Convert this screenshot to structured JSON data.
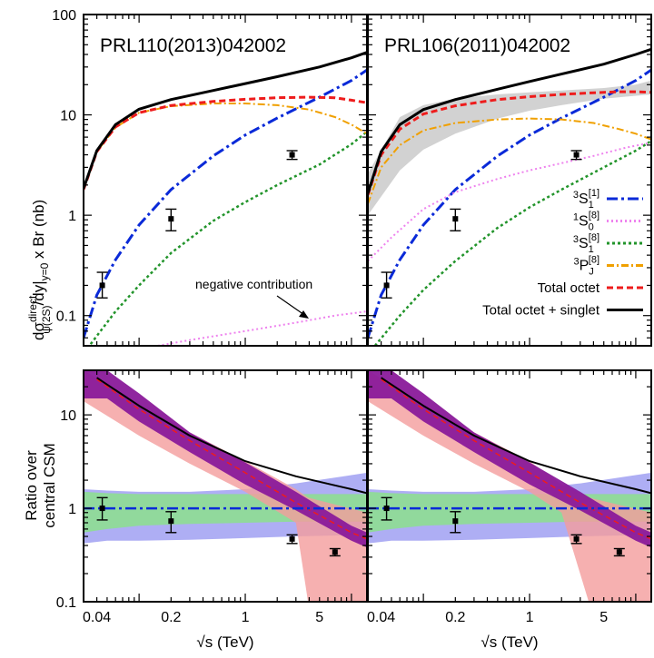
{
  "figure": {
    "xlabel": "√s (TeV)",
    "top_ylabel_main": "dσ",
    "top_ylabel_sup": "direct",
    "top_ylabel_sub": "ψ(2S)",
    "top_ylabel_rest": "/dy|",
    "top_ylabel_sub2": "y=0",
    "top_ylabel_tail": " x Br (nb)",
    "bottom_ylabel_line1": "Ratio over",
    "bottom_ylabel_line2": "central CSM",
    "panel_left_title": "PRL110(2013)042002",
    "panel_right_title": "PRL106(2011)042002",
    "annotation": "negative contribution"
  },
  "legend": [
    {
      "key": "3S1_1",
      "pre": "3",
      "main": "S",
      "sub": "1",
      "sup": "[1]",
      "color": "#0a2ad8",
      "dash": "12,4,3,4"
    },
    {
      "key": "1S0_8",
      "pre": "1",
      "main": "S",
      "sub": "0",
      "sup": "[8]",
      "color": "#ee82ee",
      "dash": "2,3"
    },
    {
      "key": "3S1_8",
      "pre": "3",
      "main": "S",
      "sub": "1",
      "sup": "[8]",
      "color": "#22942b",
      "dash": "3,3"
    },
    {
      "key": "3PJ_8",
      "pre": "3",
      "main": "P",
      "sub": "J",
      "sup": "[8]",
      "color": "#f0a000",
      "dash": "8,3,2,3"
    },
    {
      "key": "octet",
      "text": "Total octet",
      "color": "#ee1c1c",
      "dash": "7,4"
    },
    {
      "key": "total",
      "text": "Total octet + singlet",
      "color": "#000000",
      "dash": ""
    }
  ],
  "chart_data": [
    {
      "type": "line",
      "panel": "top-left",
      "title": "PRL110(2013)042002",
      "xscale": "log",
      "yscale": "log",
      "xlim": [
        0.03,
        14
      ],
      "ylim": [
        0.05,
        100
      ],
      "xticks": [
        "0.04",
        "0.2",
        "1",
        "5"
      ],
      "yticks": [
        "0.1",
        "1",
        "10",
        "100"
      ],
      "ylabel": "dσ^direct_ψ(2S)/dy|y=0 x Br (nb)",
      "series": [
        {
          "name": "3S1[1]",
          "x": [
            0.03,
            0.04,
            0.06,
            0.1,
            0.2,
            0.5,
            1,
            2,
            5,
            10,
            14
          ],
          "y": [
            0.06,
            0.16,
            0.36,
            0.8,
            1.8,
            3.9,
            6.3,
            9.3,
            15,
            22,
            28
          ]
        },
        {
          "name": "3S1[8]",
          "x": [
            0.035,
            0.06,
            0.1,
            0.2,
            0.5,
            1,
            2,
            5,
            10,
            14
          ],
          "y": [
            0.052,
            0.11,
            0.2,
            0.42,
            0.88,
            1.35,
            2.0,
            3.2,
            5.1,
            6.8
          ]
        },
        {
          "name": "3PJ[8]",
          "x": [
            0.03,
            0.04,
            0.06,
            0.1,
            0.2,
            0.5,
            1,
            2,
            4,
            7,
            10,
            14
          ],
          "y": [
            1.8,
            4.3,
            7.5,
            10.5,
            12.2,
            13.0,
            13.0,
            12.5,
            11.3,
            9.5,
            8.0,
            6.5
          ]
        },
        {
          "name": "1S0[8]",
          "x": [
            0.15,
            0.3,
            1,
            3,
            7,
            14
          ],
          "y": [
            0.05,
            0.057,
            0.07,
            0.085,
            0.1,
            0.11
          ]
        },
        {
          "name": "Total octet",
          "x": [
            0.03,
            0.04,
            0.06,
            0.1,
            0.2,
            0.5,
            1,
            2,
            4,
            7,
            10,
            14
          ],
          "y": [
            1.8,
            4.3,
            7.6,
            10.5,
            12.4,
            13.6,
            14.3,
            14.8,
            15.0,
            14.8,
            14.0,
            13.2
          ]
        },
        {
          "name": "Total octet + singlet",
          "x": [
            0.03,
            0.04,
            0.06,
            0.1,
            0.2,
            0.5,
            1,
            2,
            5,
            10,
            14
          ],
          "y": [
            1.85,
            4.4,
            8.0,
            11.4,
            14.2,
            17.5,
            20.5,
            24,
            30,
            37,
            42
          ]
        }
      ],
      "data_points": [
        {
          "x": 0.045,
          "y": 0.2,
          "ylo": 0.15,
          "yhi": 0.27
        },
        {
          "x": 0.2,
          "y": 0.92,
          "ylo": 0.7,
          "yhi": 1.15
        },
        {
          "x": 2.76,
          "y": 4.0,
          "ylo": 3.6,
          "yhi": 4.4
        }
      ]
    },
    {
      "type": "line",
      "panel": "top-right",
      "title": "PRL106(2011)042002",
      "xscale": "log",
      "yscale": "log",
      "xlim": [
        0.03,
        14
      ],
      "ylim": [
        0.05,
        100
      ],
      "xticks": [
        "0.04",
        "0.2",
        "1",
        "5"
      ],
      "series": [
        {
          "name": "3S1[1]",
          "x": [
            0.03,
            0.04,
            0.06,
            0.1,
            0.2,
            0.5,
            1,
            2,
            5,
            10,
            14
          ],
          "y": [
            0.06,
            0.16,
            0.36,
            0.8,
            1.8,
            3.9,
            6.3,
            9.3,
            15,
            22,
            28
          ]
        },
        {
          "name": "3S1[8]",
          "x": [
            0.035,
            0.06,
            0.1,
            0.2,
            0.5,
            1,
            2,
            5,
            10,
            14
          ],
          "y": [
            0.05,
            0.1,
            0.18,
            0.35,
            0.75,
            1.2,
            1.8,
            3.0,
            4.4,
            5.5
          ]
        },
        {
          "name": "3PJ[8]",
          "x": [
            0.03,
            0.04,
            0.06,
            0.1,
            0.2,
            0.5,
            1,
            2,
            4,
            7,
            10,
            14
          ],
          "y": [
            1.3,
            3.0,
            5.0,
            7.0,
            8.3,
            9.0,
            9.2,
            9.0,
            8.3,
            7.2,
            6.5,
            5.7
          ]
        },
        {
          "name": "1S0[8]",
          "x": [
            0.03,
            0.05,
            0.1,
            0.2,
            0.5,
            1,
            2,
            4,
            8,
            14
          ],
          "y": [
            0.35,
            0.6,
            1.15,
            1.7,
            2.3,
            2.8,
            3.3,
            3.9,
            4.7,
            5.3
          ]
        },
        {
          "name": "Total octet",
          "x": [
            0.03,
            0.04,
            0.06,
            0.1,
            0.2,
            0.5,
            1,
            2,
            4,
            7,
            10,
            14
          ],
          "y": [
            1.6,
            4.0,
            7.2,
            10.2,
            12.3,
            14.2,
            15.2,
            16.0,
            16.6,
            17.0,
            17.0,
            16.8
          ]
        },
        {
          "name": "Total octet + singlet",
          "x": [
            0.03,
            0.04,
            0.06,
            0.1,
            0.2,
            0.5,
            1,
            2,
            5,
            10,
            14
          ],
          "y": [
            1.65,
            4.3,
            8.0,
            11.3,
            14.2,
            18.0,
            21.5,
            25.5,
            32,
            40,
            45
          ]
        },
        {
          "name": "Total octet band",
          "x": [
            0.03,
            0.06,
            0.1,
            0.2,
            0.5,
            1,
            2,
            5,
            10,
            14
          ],
          "ylo": [
            1.0,
            2.8,
            4.5,
            6.5,
            9.2,
            11.0,
            12.5,
            14.5,
            15.5,
            16.0
          ],
          "yhi": [
            2.6,
            9.5,
            12.5,
            14.5,
            16.0,
            16.8,
            17.5,
            18.5,
            20.0,
            22.0
          ]
        }
      ],
      "data_points": [
        {
          "x": 0.045,
          "y": 0.2,
          "ylo": 0.15,
          "yhi": 0.27
        },
        {
          "x": 0.2,
          "y": 0.92,
          "ylo": 0.7,
          "yhi": 1.15
        },
        {
          "x": 2.76,
          "y": 4.0,
          "ylo": 3.6,
          "yhi": 4.4
        }
      ]
    },
    {
      "type": "area",
      "panel": "bottom-left",
      "xscale": "log",
      "yscale": "log",
      "xlim": [
        0.03,
        14
      ],
      "ylim": [
        0.1,
        30
      ],
      "xticks": [
        "0.04",
        "0.2",
        "1",
        "5"
      ],
      "yticks": [
        "0.1",
        "1",
        "10"
      ],
      "xlabel": "√s (TeV)",
      "ylabel": "Ratio over central CSM",
      "series": [
        {
          "name": "CSM band (blue)",
          "x": [
            0.03,
            0.05,
            0.1,
            0.3,
            1,
            3,
            14
          ],
          "ylo": [
            0.42,
            0.45,
            0.45,
            0.46,
            0.48,
            0.5,
            0.52
          ],
          "yhi": [
            1.6,
            1.55,
            1.5,
            1.5,
            1.6,
            1.85,
            2.4
          ]
        },
        {
          "name": "CSM band (green)",
          "x": [
            0.03,
            0.05,
            0.1,
            0.3,
            1,
            3,
            14
          ],
          "ylo": [
            0.55,
            0.6,
            0.65,
            0.68,
            0.7,
            0.72,
            0.72
          ],
          "yhi": [
            1.5,
            1.45,
            1.42,
            1.42,
            1.42,
            1.42,
            1.42
          ]
        },
        {
          "name": "Octet band (pink)",
          "x": [
            0.03,
            0.1,
            0.3,
            1,
            3,
            3.9,
            14
          ],
          "ylo": [
            14,
            6.0,
            3.0,
            1.5,
            0.7,
            0.1,
            0.1
          ],
          "yhi": [
            30,
            13,
            6.5,
            3.2,
            1.6,
            1.3,
            0.9
          ]
        },
        {
          "name": "Octet band (purple)",
          "x": [
            0.03,
            0.05,
            0.1,
            0.3,
            1,
            3,
            10,
            14
          ],
          "ylo": [
            15,
            15,
            8.5,
            4.0,
            1.8,
            0.95,
            0.45,
            0.38
          ],
          "yhi": [
            30,
            30,
            17,
            6.5,
            3.1,
            1.5,
            0.65,
            0.55
          ]
        },
        {
          "name": "Total octet ratio",
          "x": [
            0.04,
            0.1,
            0.3,
            1,
            3,
            10,
            14
          ],
          "y": [
            24,
            11.5,
            5.3,
            2.4,
            1.15,
            0.55,
            0.47
          ]
        },
        {
          "name": "Total octet + singlet ratio",
          "x": [
            0.04,
            0.1,
            0.3,
            1,
            3,
            10,
            14
          ],
          "y": [
            25,
            12.5,
            6.0,
            3.2,
            2.2,
            1.6,
            1.45
          ]
        },
        {
          "name": "CSM = 1",
          "x": [
            0.03,
            14
          ],
          "y": [
            1,
            1
          ]
        }
      ],
      "data_points": [
        {
          "x": 0.045,
          "y": 1.0,
          "ylo": 0.75,
          "yhi": 1.3
        },
        {
          "x": 0.2,
          "y": 0.73,
          "ylo": 0.55,
          "yhi": 0.92
        },
        {
          "x": 2.76,
          "y": 0.47,
          "ylo": 0.42,
          "yhi": 0.52
        },
        {
          "x": 7,
          "y": 0.34,
          "ylo": 0.31,
          "yhi": 0.37
        }
      ]
    },
    {
      "type": "area",
      "panel": "bottom-right",
      "xscale": "log",
      "yscale": "log",
      "xlim": [
        0.03,
        14
      ],
      "ylim": [
        0.1,
        30
      ],
      "xticks": [
        "0.04",
        "0.2",
        "1",
        "5"
      ],
      "xlabel": "√s (TeV)",
      "series": [
        {
          "name": "CSM band (blue)",
          "x": [
            0.03,
            0.05,
            0.1,
            0.3,
            1,
            3,
            14
          ],
          "ylo": [
            0.42,
            0.45,
            0.45,
            0.46,
            0.48,
            0.5,
            0.52
          ],
          "yhi": [
            1.6,
            1.55,
            1.5,
            1.5,
            1.6,
            1.85,
            2.4
          ]
        },
        {
          "name": "CSM band (green)",
          "x": [
            0.03,
            0.05,
            0.1,
            0.3,
            1,
            3,
            14
          ],
          "ylo": [
            0.55,
            0.6,
            0.65,
            0.68,
            0.7,
            0.72,
            0.72
          ],
          "yhi": [
            1.5,
            1.45,
            1.42,
            1.42,
            1.42,
            1.42,
            1.42
          ]
        },
        {
          "name": "Octet band (pink)",
          "x": [
            0.03,
            0.1,
            0.3,
            1,
            2,
            3.6,
            14
          ],
          "ylo": [
            14,
            6.0,
            3.0,
            1.5,
            0.9,
            0.1,
            0.1
          ],
          "yhi": [
            30,
            13,
            6.5,
            3.2,
            1.8,
            1.3,
            0.9
          ]
        },
        {
          "name": "Octet band (purple)",
          "x": [
            0.03,
            0.05,
            0.1,
            0.3,
            1,
            3,
            10,
            14
          ],
          "ylo": [
            15,
            15,
            8.5,
            4.0,
            1.8,
            0.95,
            0.45,
            0.38
          ],
          "yhi": [
            30,
            30,
            17,
            6.5,
            3.1,
            1.5,
            0.65,
            0.55
          ]
        },
        {
          "name": "Total octet ratio",
          "x": [
            0.04,
            0.1,
            0.3,
            1,
            3,
            10,
            14
          ],
          "y": [
            24,
            11.5,
            5.3,
            2.4,
            1.15,
            0.55,
            0.47
          ]
        },
        {
          "name": "Total octet + singlet ratio",
          "x": [
            0.04,
            0.1,
            0.3,
            1,
            3,
            10,
            14
          ],
          "y": [
            25,
            12.5,
            6.0,
            3.2,
            2.2,
            1.6,
            1.45
          ]
        },
        {
          "name": "CSM = 1",
          "x": [
            0.03,
            14
          ],
          "y": [
            1,
            1
          ]
        }
      ],
      "data_points": [
        {
          "x": 0.045,
          "y": 1.0,
          "ylo": 0.75,
          "yhi": 1.3
        },
        {
          "x": 0.2,
          "y": 0.73,
          "ylo": 0.55,
          "yhi": 0.92
        },
        {
          "x": 2.76,
          "y": 0.47,
          "ylo": 0.42,
          "yhi": 0.52
        },
        {
          "x": 7,
          "y": 0.34,
          "ylo": 0.31,
          "yhi": 0.37
        }
      ]
    }
  ]
}
